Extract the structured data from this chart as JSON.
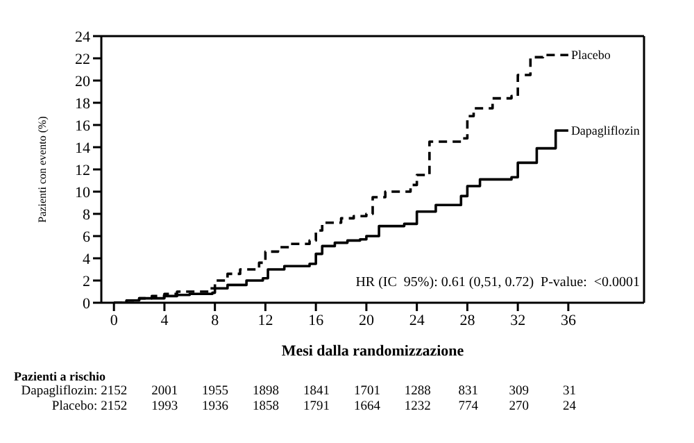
{
  "chart_data": {
    "type": "step",
    "ylabel": "Pazienti con evento (%)",
    "xlabel": "Mesi dalla randomizzazione",
    "xlim": [
      -1,
      42
    ],
    "xticks": [
      0,
      4,
      8,
      12,
      16,
      20,
      24,
      28,
      32,
      36
    ],
    "ylim": [
      0,
      24
    ],
    "yticks": [
      0,
      2,
      4,
      6,
      8,
      10,
      12,
      14,
      16,
      18,
      20,
      22,
      24
    ],
    "legend": false,
    "marker": "none",
    "annotations": [
      "HR (IC  95%): 0.61 (0,51, 0.72)  P-value:  <0.0001",
      "Pazienti a rischio",
      "Dapagliflozin: 2152 2001 1955 1898 1841 1701 1288 831 309 31",
      "Placebo: 2152 1993 1936 1858 1791 1664 1232 774 270 24"
    ],
    "series": [
      {
        "name": "Placebo",
        "color": "#000000",
        "line_style": "dashed",
        "x": [
          0,
          1,
          2,
          3,
          4,
          5,
          7.5,
          8,
          9,
          10,
          11.5,
          12,
          13,
          14,
          15.5,
          16,
          16.5,
          18,
          19,
          20,
          20.5,
          21.5,
          23.5,
          24,
          25,
          27.5,
          28,
          28.5,
          30,
          31.5,
          32,
          33,
          34,
          36
        ],
        "values": [
          0,
          0.2,
          0.4,
          0.6,
          0.8,
          1.0,
          1.3,
          2.0,
          2.6,
          3.0,
          3.6,
          4.6,
          5.0,
          5.3,
          5.6,
          6.5,
          7.2,
          7.6,
          7.8,
          8.0,
          9.5,
          10.0,
          10.6,
          11.5,
          14.5,
          14.8,
          16.8,
          17.5,
          18.4,
          18.6,
          20.5,
          22.1,
          22.3,
          22.3
        ]
      },
      {
        "name": "Dapagliflozin",
        "color": "#000000",
        "line_style": "solid",
        "x": [
          0,
          1,
          2,
          4,
          5,
          6,
          7.8,
          8,
          9,
          10.5,
          11.8,
          12.2,
          13.5,
          15.5,
          16,
          16.5,
          17.5,
          18.5,
          19.5,
          20,
          21,
          23,
          24,
          25.5,
          27.5,
          28,
          29,
          31.5,
          32,
          33.5,
          35,
          36
        ],
        "values": [
          0,
          0.2,
          0.4,
          0.6,
          0.7,
          0.8,
          0.9,
          1.3,
          1.6,
          2.0,
          2.2,
          3.0,
          3.3,
          3.5,
          4.4,
          5.1,
          5.4,
          5.6,
          5.7,
          6.0,
          6.9,
          7.1,
          8.2,
          8.8,
          9.6,
          10.5,
          11.1,
          11.3,
          12.6,
          13.9,
          15.5,
          15.5
        ]
      }
    ]
  }
}
